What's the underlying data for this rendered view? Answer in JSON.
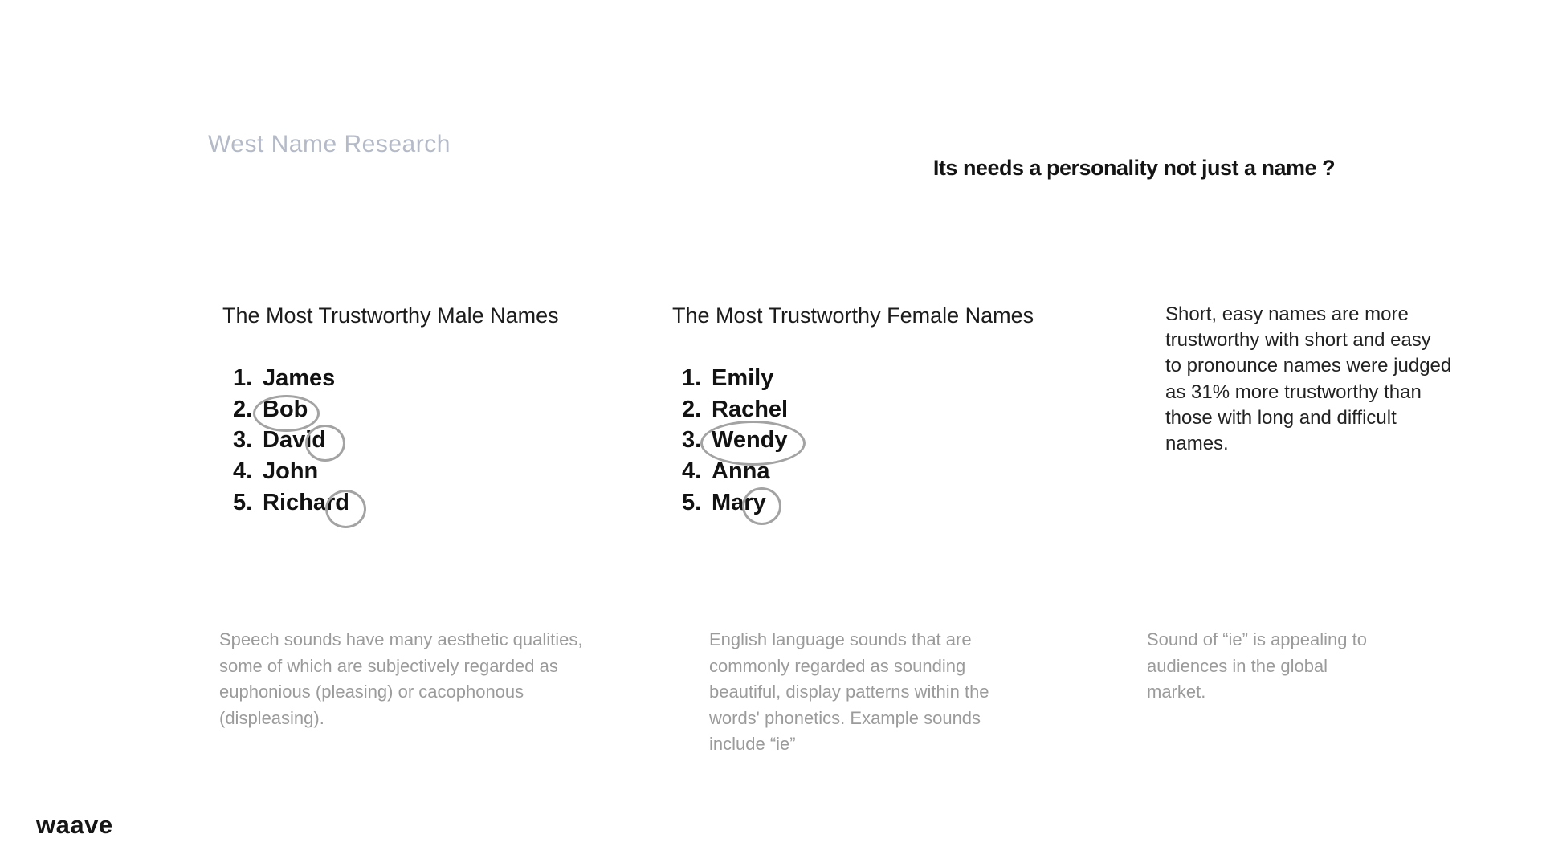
{
  "page": {
    "deck_title": "West Name Research",
    "headline": "Its needs a personality not just a name ?",
    "logo_text": "waave"
  },
  "columns": {
    "male": {
      "heading": "The Most Trustworthy Male Names",
      "items": [
        {
          "rank": "1.",
          "name": "James",
          "circled": false
        },
        {
          "rank": "2.",
          "name": "Bob",
          "circled": true
        },
        {
          "rank": "3.",
          "name": "David",
          "circled": true
        },
        {
          "rank": "4.",
          "name": "John",
          "circled": false
        },
        {
          "rank": "5.",
          "name": "Richard",
          "circled": true
        }
      ],
      "footnote_lines": [
        "Speech sounds have many aesthetic qualities,",
        "some of which are subjectively regarded as",
        "euphonious (pleasing) or cacophonous",
        "(displeasing)."
      ]
    },
    "female": {
      "heading": "The Most Trustworthy Female Names",
      "items": [
        {
          "rank": "1.",
          "name": "Emily",
          "circled": false
        },
        {
          "rank": "2.",
          "name": "Rachel",
          "circled": false
        },
        {
          "rank": "3.",
          "name": "Wendy",
          "circled": true
        },
        {
          "rank": "4.",
          "name": "Anna",
          "circled": false
        },
        {
          "rank": "5.",
          "name": "Mary",
          "circled": true
        }
      ],
      "footnote_lines": [
        "English language sounds that are",
        "commonly regarded as sounding",
        "beautiful, display patterns within the",
        "words' phonetics. Example sounds",
        "include “ie”"
      ]
    },
    "insight": {
      "paragraph_lines": [
        "Short, easy names are more",
        "trustworthy with short and easy",
        "to pronounce names were judged",
        "as 31% more trustworthy than",
        "those with long and difficult",
        "names."
      ],
      "footnote_lines": [
        "Sound of “ie” is appealing to",
        "audiences in the global",
        "market."
      ]
    }
  },
  "colors": {
    "background": "#ffffff",
    "deck_title": "#b5bac8",
    "headline": "#141414",
    "list_text": "#121212",
    "body_dark": "#222222",
    "body_gray": "#9b9b9b",
    "circle_stroke": "#a3a3a3",
    "logo": "#161616"
  }
}
